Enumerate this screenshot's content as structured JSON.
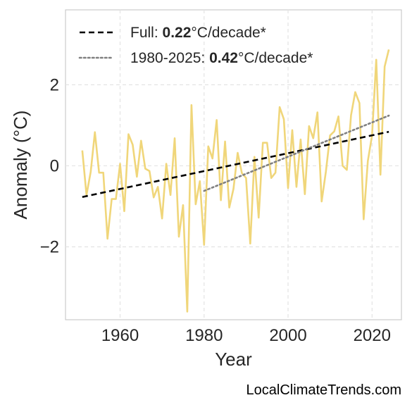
{
  "chart_data": {
    "type": "line",
    "title": "",
    "xlabel": "Year",
    "ylabel": "Anomaly (°C)",
    "xlim": [
      1947,
      2027
    ],
    "ylim": [
      -3.8,
      3.85
    ],
    "xticks": [
      1960,
      1980,
      2000,
      2020
    ],
    "xtick_labels": [
      "1960",
      "1980",
      "2000",
      "2020"
    ],
    "yticks": [
      -2,
      0,
      2
    ],
    "ytick_labels": [
      "−2",
      "0",
      "2"
    ],
    "grid": true,
    "legend_position": "top-left",
    "series": [
      {
        "style": "solid",
        "color": "#f0d67a",
        "x": [
          1951,
          1952,
          1953,
          1954,
          1955,
          1956,
          1957,
          1958,
          1959,
          1960,
          1961,
          1962,
          1963,
          1964,
          1965,
          1966,
          1967,
          1968,
          1969,
          1970,
          1971,
          1972,
          1973,
          1974,
          1975,
          1976,
          1977,
          1978,
          1979,
          1980,
          1981,
          1982,
          1983,
          1984,
          1985,
          1986,
          1987,
          1988,
          1989,
          1990,
          1991,
          1992,
          1993,
          1994,
          1995,
          1996,
          1997,
          1998,
          1999,
          2000,
          2001,
          2002,
          2003,
          2004,
          2005,
          2006,
          2007,
          2008,
          2009,
          2010,
          2011,
          2012,
          2013,
          2014,
          2015,
          2016,
          2017,
          2018,
          2019,
          2020,
          2021,
          2022,
          2023,
          2024
        ],
        "values": [
          0.38,
          -0.72,
          -0.15,
          0.83,
          -0.17,
          -0.17,
          -1.8,
          -0.82,
          -0.82,
          0.05,
          -1.12,
          0.78,
          0.52,
          -0.27,
          0.62,
          -0.07,
          -0.13,
          -0.78,
          -0.52,
          -1.3,
          0.05,
          -0.72,
          0.68,
          -1.75,
          -0.97,
          -3.6,
          1.5,
          -0.95,
          -0.38,
          -1.95,
          0.48,
          0.18,
          1.13,
          -0.85,
          0.6,
          -1.03,
          -0.57,
          0.32,
          -0.18,
          -0.3,
          -1.92,
          0.22,
          -1.28,
          0.57,
          0.57,
          -0.3,
          -0.17,
          1.45,
          1.15,
          -0.55,
          0.88,
          -0.52,
          0.65,
          -0.7,
          0.98,
          0.68,
          1.32,
          -0.88,
          -0.15,
          0.75,
          0.85,
          1.22,
          0.0,
          -0.1,
          1.25,
          1.82,
          1.55,
          -1.32,
          0.12,
          0.75,
          2.62,
          -0.22,
          2.45,
          2.87
        ]
      },
      {
        "name": "Full: 0.22°C/decade*",
        "style": "dashed",
        "color": "#000000",
        "x": [
          1951,
          2024
        ],
        "values": [
          -0.77,
          0.84
        ]
      },
      {
        "name": "1980-2025: 0.42°C/decade*",
        "style": "dotted",
        "color": "#808080",
        "x": [
          1980,
          2024
        ],
        "values": [
          -0.62,
          1.24
        ]
      }
    ],
    "legend": [
      {
        "prefix": "Full: ",
        "bold": "0.22",
        "suffix": "°C/decade*",
        "style": "dashed",
        "color": "#000000"
      },
      {
        "prefix": "1980-2025: ",
        "bold": "0.42",
        "suffix": "°C/decade*",
        "style": "dotted",
        "color": "#808080"
      }
    ]
  },
  "credit": "LocalClimateTrends.com"
}
